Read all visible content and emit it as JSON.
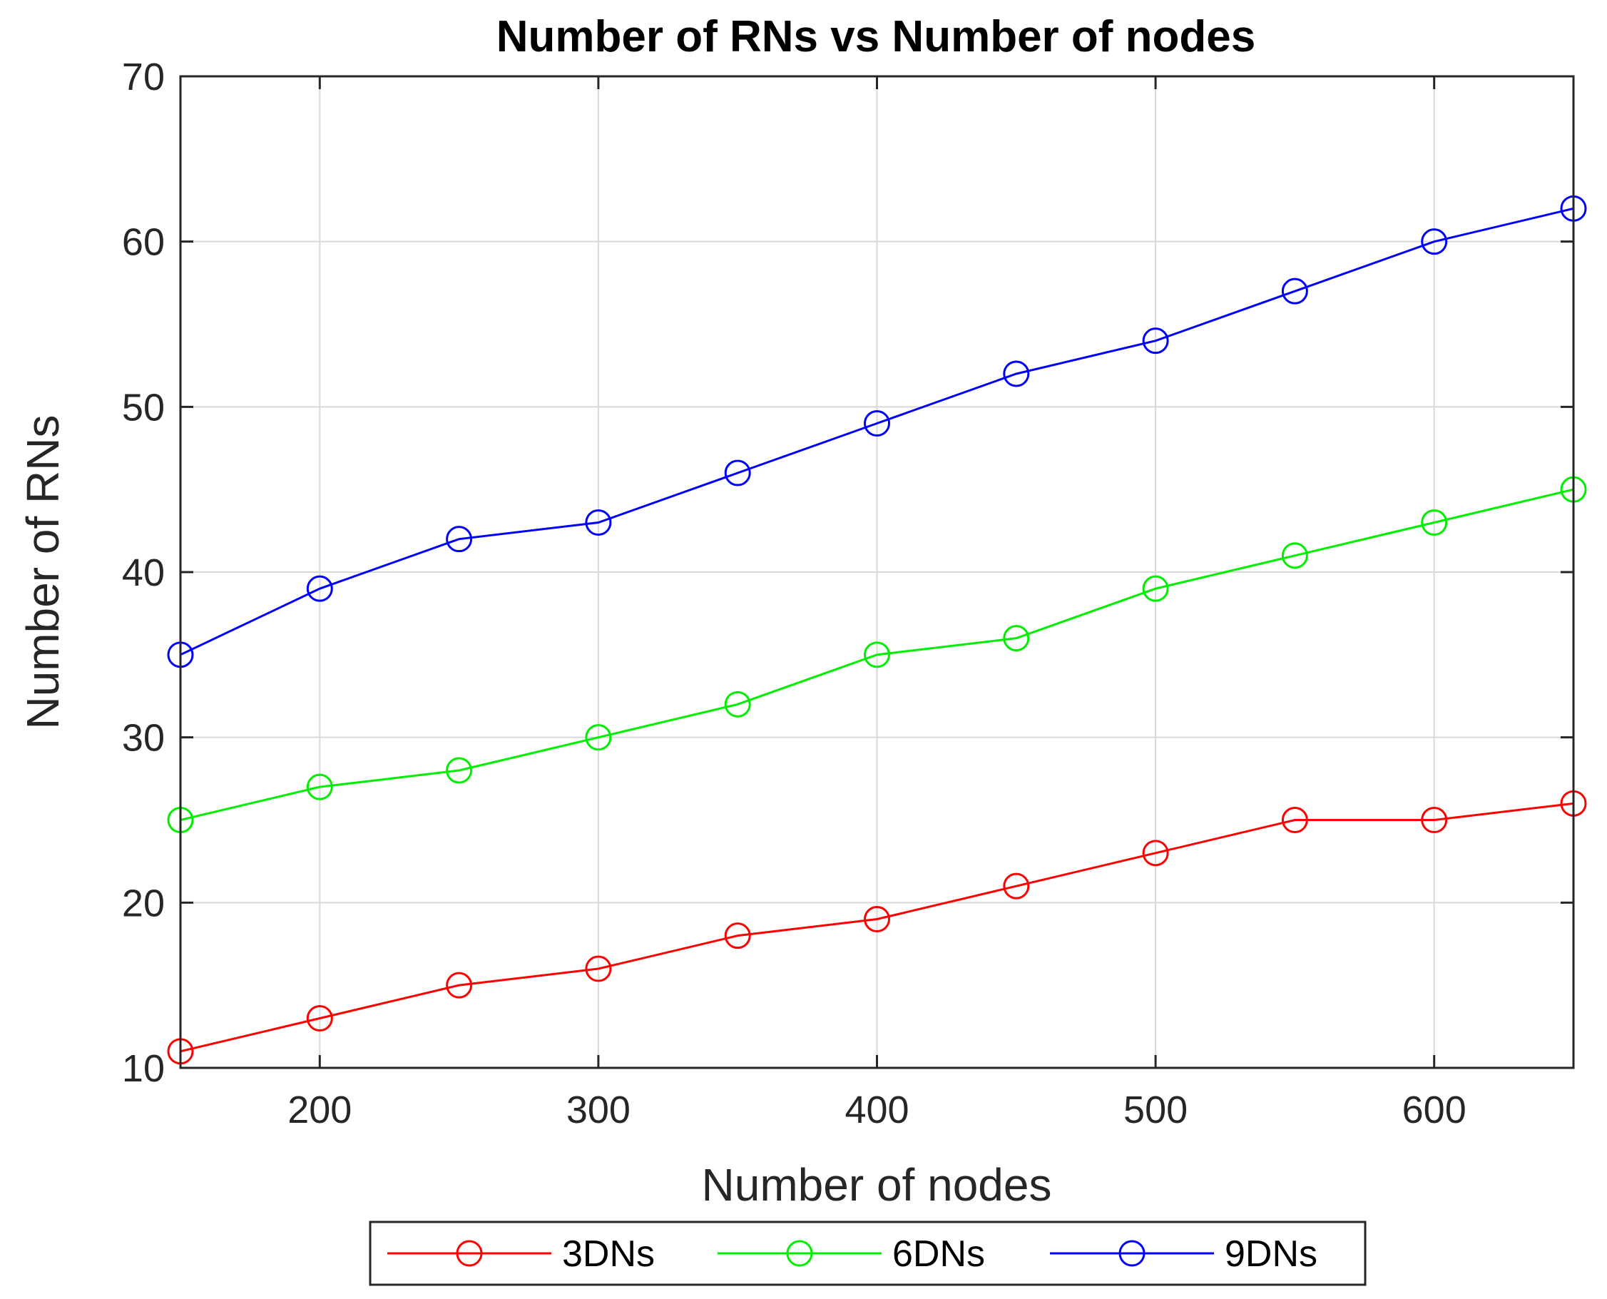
{
  "chart_data": {
    "type": "line",
    "title": "Number of RNs vs Number of nodes",
    "xlabel": "Number of nodes",
    "ylabel": "Number of RNs",
    "xlim": [
      150,
      650
    ],
    "ylim": [
      10,
      70
    ],
    "xticks": [
      200,
      300,
      400,
      500,
      600
    ],
    "yticks": [
      10,
      20,
      30,
      40,
      50,
      60,
      70
    ],
    "grid": true,
    "legend_position": "bottom-outside",
    "x": [
      150,
      200,
      250,
      300,
      350,
      400,
      450,
      500,
      550,
      600,
      650
    ],
    "series": [
      {
        "name": "3DNs",
        "color": "#ff0000",
        "marker": "circle-open",
        "values": [
          11,
          13,
          15,
          16,
          18,
          19,
          21,
          23,
          25,
          25,
          26
        ]
      },
      {
        "name": "6DNs",
        "color": "#00ee00",
        "marker": "circle-open",
        "values": [
          25,
          27,
          28,
          30,
          32,
          35,
          36,
          39,
          41,
          43,
          45
        ]
      },
      {
        "name": "9DNs",
        "color": "#0000ff",
        "marker": "circle-open",
        "values": [
          35,
          39,
          42,
          43,
          46,
          49,
          52,
          54,
          57,
          60,
          62
        ]
      }
    ]
  }
}
